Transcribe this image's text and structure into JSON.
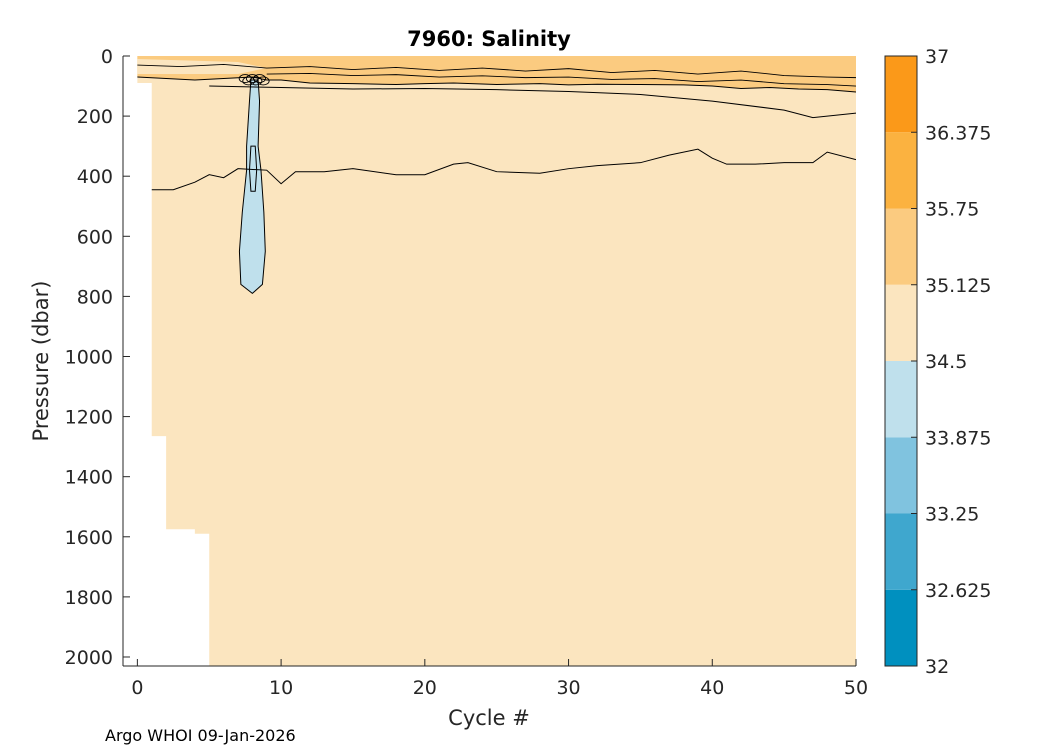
{
  "chart_data": {
    "type": "contourf",
    "title": "7960:  Salinity",
    "xlabel": "Cycle #",
    "ylabel": "Pressure (dbar)",
    "xlim": [
      -1,
      50
    ],
    "ylim": [
      2030,
      0
    ],
    "xticks": [
      0,
      10,
      20,
      30,
      40,
      50
    ],
    "yticks": [
      0,
      200,
      400,
      600,
      800,
      1000,
      1200,
      1400,
      1600,
      1800,
      2000
    ],
    "colorbar": {
      "levels": [
        32,
        32.625,
        33.25,
        33.875,
        34.5,
        35.125,
        35.75,
        36.375,
        37
      ],
      "tick_labels": [
        "32",
        "32.625",
        "33.25",
        "33.875",
        "34.5",
        "35.125",
        "35.75",
        "36.375",
        "37"
      ],
      "colors": [
        "#0090bf",
        "#3fa7ce",
        "#80c3df",
        "#bfe0ec",
        "#fbe5bf",
        "#fbcb80",
        "#fbb240",
        "#fb9919"
      ]
    },
    "profile_max_depth": [
      {
        "cycle": 0,
        "max_pressure": 90
      },
      {
        "cycle": 1,
        "max_pressure": 1265
      },
      {
        "cycle": 2,
        "max_pressure": 1575
      },
      {
        "cycle": 4,
        "max_pressure": 1590
      },
      {
        "cycle": 5,
        "max_pressure": 2030
      }
    ],
    "regions": [
      {
        "range": "34.5-35.125",
        "fill": "#fbe5bf",
        "description": "bulk of water column"
      },
      {
        "range": "35.125-35.75",
        "fill": "#fbcb80",
        "description": "upper ~120 dbar"
      },
      {
        "range": "33.875-34.5",
        "fill": "#bfe0ec",
        "description": "low-salinity plume near cycle 8, 80-790 dbar"
      }
    ],
    "contour_lines": [
      {
        "name": "isohaline near 200 dbar",
        "cycles": [
          5,
          10,
          15,
          20,
          25,
          30,
          35,
          40,
          45,
          47,
          50
        ],
        "pressure": [
          100,
          105,
          110,
          108,
          112,
          118,
          128,
          150,
          180,
          205,
          190
        ]
      },
      {
        "name": "isohaline near 400 dbar",
        "cycles": [
          1,
          2.5,
          4,
          5,
          6,
          7,
          9,
          10,
          11,
          13,
          15,
          18,
          20,
          22,
          23,
          25,
          28,
          30,
          32,
          35,
          37,
          39,
          40,
          41,
          43,
          45,
          47,
          48,
          50
        ],
        "pressure": [
          445,
          445,
          420,
          395,
          405,
          375,
          380,
          425,
          385,
          385,
          375,
          395,
          395,
          360,
          355,
          385,
          390,
          375,
          365,
          355,
          330,
          310,
          340,
          360,
          360,
          355,
          355,
          320,
          345
        ]
      }
    ]
  },
  "footer": {
    "text": "Argo WHOI 09-Jan-2026"
  }
}
